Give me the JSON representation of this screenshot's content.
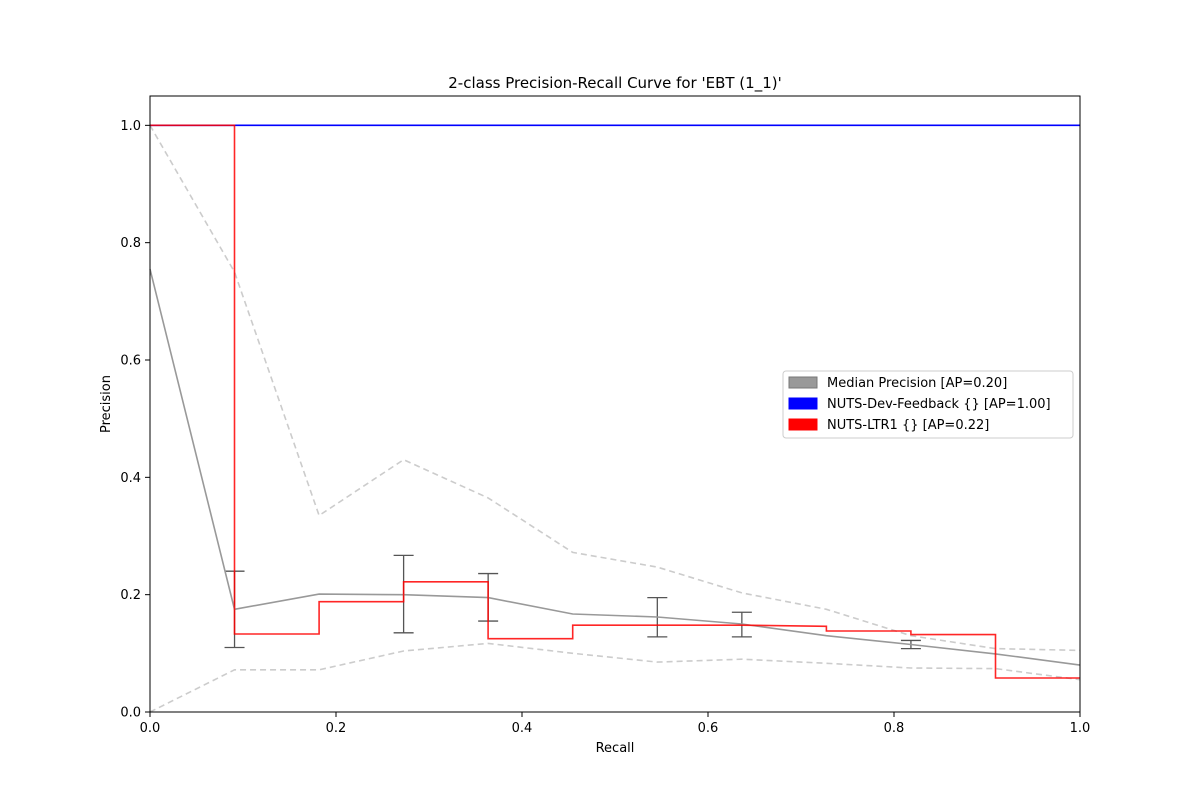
{
  "chart_data": {
    "type": "line",
    "title": "2-class Precision-Recall Curve for 'EBT (1_1)'",
    "xlabel": "Recall",
    "ylabel": "Precision",
    "xlim": [
      0.0,
      1.0
    ],
    "ylim": [
      0.0,
      1.05
    ],
    "x_ticks": [
      "0.0",
      "0.2",
      "0.4",
      "0.6",
      "0.8",
      "1.0"
    ],
    "y_ticks": [
      "0.0",
      "0.2",
      "0.4",
      "0.6",
      "0.8",
      "1.0"
    ],
    "grid": false,
    "legend_position": "center-right",
    "series": [
      {
        "name": "Median Precision [AP=0.20]",
        "style": "solid",
        "color": "#999999",
        "x": [
          0.0,
          0.0909,
          0.1818,
          0.2727,
          0.3636,
          0.4545,
          0.5455,
          0.6364,
          0.7273,
          0.8182,
          0.9091,
          1.0
        ],
        "y": [
          0.755,
          0.175,
          0.201,
          0.2,
          0.195,
          0.167,
          0.162,
          0.15,
          0.13,
          0.115,
          0.099,
          0.08
        ]
      },
      {
        "name": "NUTS-Dev-Feedback {} [AP=1.00]",
        "style": "solid",
        "color": "#0000ff",
        "x": [
          0.0,
          1.0
        ],
        "y": [
          1.0,
          1.0
        ]
      },
      {
        "name": "NUTS-LTR1 {} [AP=0.22]",
        "style": "step",
        "color": "#ff0000",
        "x": [
          0.0,
          0.0909,
          0.0909,
          0.1818,
          0.1818,
          0.2727,
          0.2727,
          0.3636,
          0.3636,
          0.4545,
          0.4545,
          0.5455,
          0.6364,
          0.7273,
          0.7273,
          0.8182,
          0.8182,
          0.9091,
          0.9091,
          1.0
        ],
        "y": [
          1.0,
          1.0,
          0.133,
          0.133,
          0.188,
          0.188,
          0.222,
          0.222,
          0.125,
          0.125,
          0.148,
          0.148,
          0.148,
          0.146,
          0.138,
          0.138,
          0.132,
          0.132,
          0.058,
          0.058
        ]
      }
    ],
    "bounds": {
      "color": "#cccccc",
      "style": "dashed",
      "x": [
        0.0,
        0.0909,
        0.1818,
        0.2727,
        0.3636,
        0.4545,
        0.5455,
        0.6364,
        0.7273,
        0.8182,
        0.9091,
        1.0
      ],
      "upper": [
        1.0,
        0.75,
        0.335,
        0.43,
        0.365,
        0.272,
        0.247,
        0.203,
        0.175,
        0.13,
        0.108,
        0.105
      ],
      "lower": [
        0.0,
        0.072,
        0.072,
        0.104,
        0.117,
        0.1,
        0.085,
        0.09,
        0.083,
        0.075,
        0.074,
        0.055
      ]
    },
    "error_bars": {
      "color": "#555555",
      "points": [
        {
          "x": 0.0909,
          "low": 0.11,
          "high": 0.24
        },
        {
          "x": 0.2727,
          "low": 0.135,
          "high": 0.267
        },
        {
          "x": 0.3636,
          "low": 0.155,
          "high": 0.236
        },
        {
          "x": 0.5455,
          "low": 0.128,
          "high": 0.195
        },
        {
          "x": 0.6364,
          "low": 0.128,
          "high": 0.17
        },
        {
          "x": 0.8182,
          "low": 0.108,
          "high": 0.122
        }
      ]
    }
  }
}
